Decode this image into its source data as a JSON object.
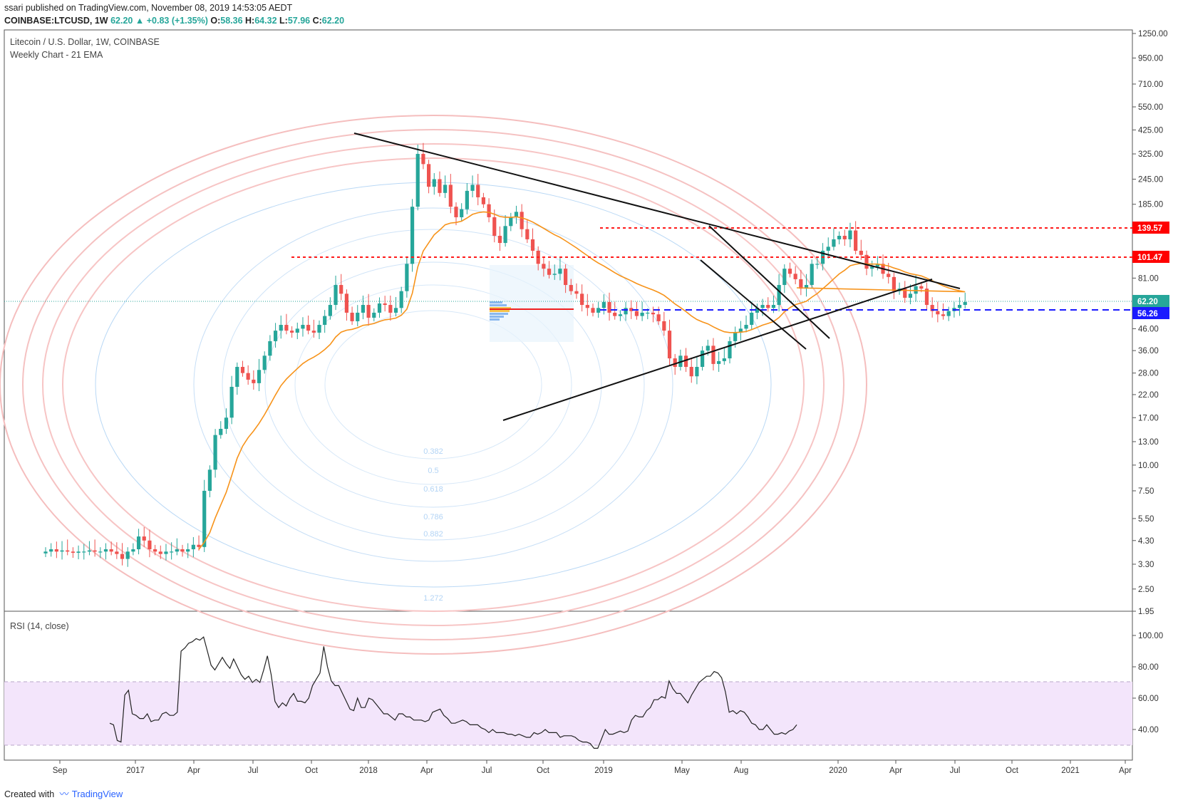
{
  "header": {
    "publisher": "ssari published on TradingView.com, November 08, 2019 14:53:05 AEDT",
    "symbol": "COINBASE:LTCUSD, 1W",
    "last": "62.20",
    "change": "+0.83 (+1.35%)",
    "o_label": "O:",
    "o_val": "58.36",
    "h_label": "H:",
    "h_val": "64.32",
    "l_label": "L:",
    "l_val": "57.96",
    "c_label": "C:",
    "c_val": "62.20"
  },
  "chart": {
    "title": "Litecoin / U.S. Dollar, 1W, COINBASE",
    "subtitle": "Weekly Chart - 21 EMA",
    "rsi_label": "RSI (14, close)"
  },
  "footer": {
    "created_with": "Created with",
    "brand": "TradingView"
  },
  "colors": {
    "up": "#26a69a",
    "down": "#ef5350",
    "ema": "#f7931a",
    "resistance": "#ff0000",
    "support": "#0000ff",
    "rsi_band": "#f3e5fb"
  },
  "chart_data": [
    {
      "type": "candlestick",
      "title": "Litecoin / U.S. Dollar, 1W, COINBASE",
      "scale": "log",
      "y_ticks": [
        "1250.00",
        "950.00",
        "710.00",
        "550.00",
        "425.00",
        "325.00",
        "245.00",
        "185.00",
        "140.00",
        "101.47",
        "81.00",
        "62.20",
        "56.26",
        "46.00",
        "36.00",
        "28.00",
        "22.00",
        "17.00",
        "13.00",
        "10.00",
        "7.50",
        "5.50",
        "4.30",
        "3.30",
        "2.50",
        "1.95"
      ],
      "x_ticks": [
        "Sep",
        "2017",
        "Apr",
        "Jul",
        "Oct",
        "2018",
        "Apr",
        "Jul",
        "Oct",
        "2019",
        "May",
        "Aug",
        "2020",
        "Apr",
        "Jul",
        "Oct",
        "2021",
        "Apr"
      ],
      "price_levels": [
        {
          "label": "139.57",
          "value": 139.57,
          "style": "dashed-red"
        },
        {
          "label": "101.47",
          "value": 101.47,
          "style": "dashed-red"
        },
        {
          "label": "62.20",
          "value": 62.2,
          "style": "last-price"
        },
        {
          "label": "56.26",
          "value": 56.26,
          "style": "dashed-blue"
        }
      ],
      "fib_levels": [
        "0.382",
        "0.5",
        "0.618",
        "0.786",
        "0.882",
        "1.272"
      ],
      "last_close": 62.2
    },
    {
      "type": "line",
      "title": "RSI (14, close)",
      "y_ticks": [
        "100.00",
        "80.00",
        "60.00",
        "40.00"
      ],
      "band": [
        30,
        70
      ],
      "values": [
        44,
        43,
        33,
        32,
        62,
        65,
        50,
        49,
        47,
        47,
        50,
        45,
        46,
        46,
        50,
        51,
        49,
        49,
        51,
        90,
        92,
        95,
        96,
        98,
        97,
        99,
        90,
        81,
        78,
        82,
        86,
        82,
        79,
        85,
        80,
        75,
        72,
        74,
        70,
        72,
        70,
        78,
        87,
        75,
        58,
        54,
        57,
        55,
        60,
        63,
        58,
        58,
        57,
        60,
        68,
        72,
        76,
        93,
        80,
        71,
        68,
        68,
        63,
        58,
        53,
        52,
        60,
        54,
        54,
        60,
        59,
        56,
        53,
        50,
        50,
        48,
        46,
        50,
        50,
        48,
        48,
        46,
        46,
        46,
        45,
        46,
        51,
        52,
        53,
        49,
        47,
        44,
        44,
        45,
        46,
        45,
        43,
        43,
        43,
        41,
        40,
        38,
        40,
        38,
        38,
        38,
        37,
        37,
        36,
        37,
        36,
        35,
        35,
        38,
        37,
        38,
        40,
        38,
        38,
        38,
        35,
        36,
        36,
        36,
        35,
        33,
        32,
        32,
        31,
        28,
        28,
        34,
        40,
        37,
        37,
        38,
        39,
        38,
        39,
        46,
        49,
        48,
        48,
        52,
        54,
        59,
        59,
        61,
        60,
        71,
        66,
        63,
        63,
        60,
        57,
        62,
        66,
        70,
        72,
        74,
        74,
        77,
        76,
        73,
        64,
        51,
        52,
        50,
        52,
        51,
        48,
        44,
        43,
        40,
        40,
        43,
        40,
        37,
        37,
        38,
        37,
        39,
        40,
        43
      ]
    }
  ]
}
